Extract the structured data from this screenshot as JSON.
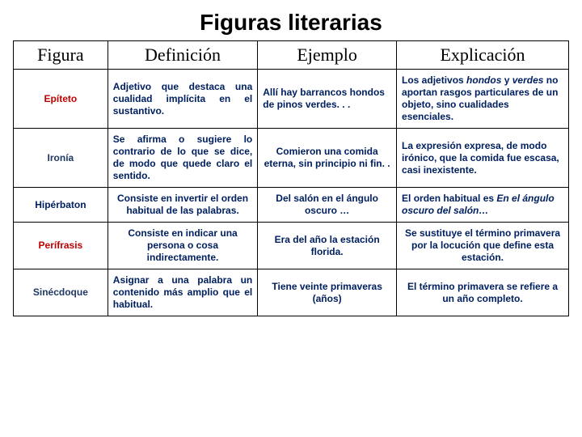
{
  "title": "Figuras literarias",
  "columns": {
    "figura": "Figura",
    "definicion": "Definición",
    "ejemplo": "Ejemplo",
    "explicacion": "Explicación"
  },
  "rows": [
    {
      "id": "epiteto",
      "figura": "Epíteto",
      "definicion": "Adjetivo que destaca una cualidad implícita en el sustantivo.",
      "ejemplo": "Allí hay barrancos hondos\nde pinos verdes. . .",
      "explicacion_pre": "Los adjetivos ",
      "explicacion_i1": "hondos",
      "explicacion_mid": " y ",
      "explicacion_i2": "verdes",
      "explicacion_post": " no aportan rasgos particulares de un objeto, sino cualidades esenciales."
    },
    {
      "id": "ironia",
      "figura": "Ironía",
      "definicion": "Se afirma o sugiere lo contrario de lo que se dice, de modo que quede claro el sentido.",
      "ejemplo": "Comieron una comida eterna, sin principio ni fin. .",
      "explicacion": "La expresión expresa, de modo irónico, que la comida fue escasa, casi inexistente."
    },
    {
      "id": "hiperbaton",
      "figura": "Hipérbaton",
      "definicion": "Consiste en invertir el orden habitual de las palabras.",
      "ejemplo": "Del salón en el ángulo oscuro …",
      "explicacion_pre": "El orden habitual es ",
      "explicacion_i1": "En el ángulo oscuro del salón…"
    },
    {
      "id": "perifrasis",
      "figura": "Perífrasis",
      "definicion": "Consiste en indicar una persona o cosa indirectamente.",
      "ejemplo": "Era del año la estación florida.",
      "explicacion": "Se sustituye el término primavera por la locución que define esta estación."
    },
    {
      "id": "sinecdoque",
      "figura": "Sinécdoque",
      "definicion": "Asignar a una palabra un contenido más amplio que el habitual.",
      "ejemplo": "Tiene veinte primaveras (años)",
      "explicacion": "El término primavera se refiere a un año completo."
    }
  ]
}
